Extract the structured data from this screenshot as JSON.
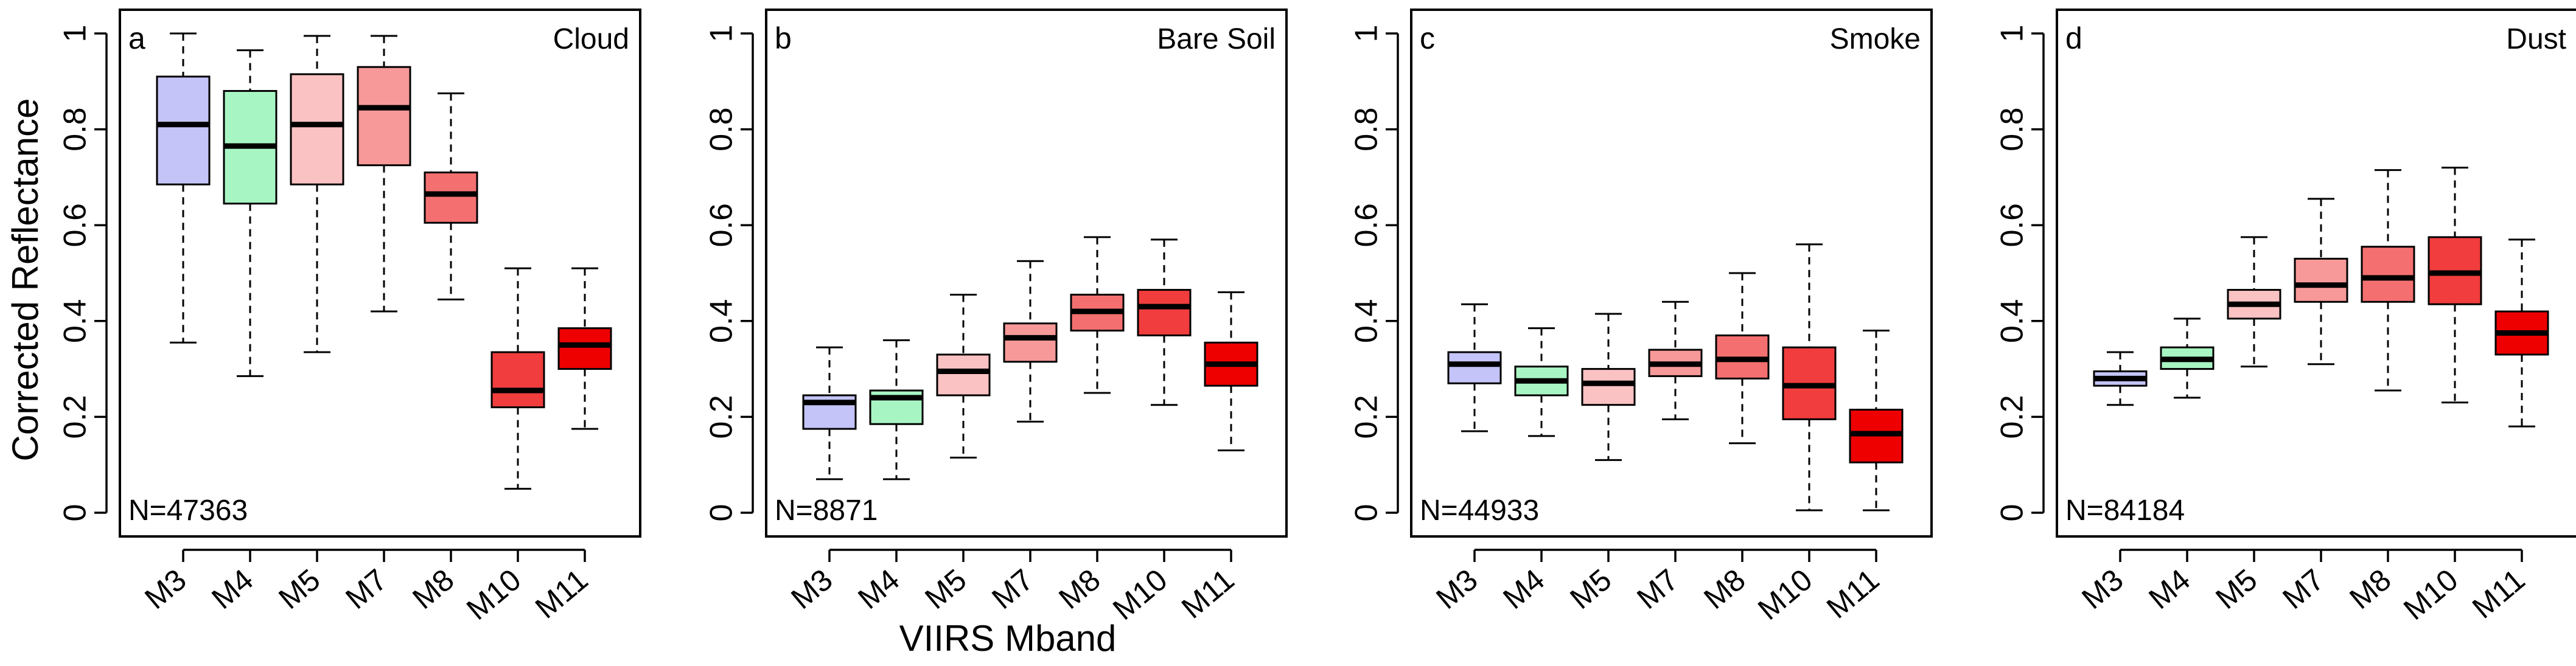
{
  "chart_data": {
    "type": "boxplot",
    "ylabel": "Corrected Reflectance",
    "xlabel": "VIIRS Mband",
    "ylim": [
      0,
      1
    ],
    "yticks": [
      "0",
      "0.2",
      "0.4",
      "0.6",
      "0.8",
      "1"
    ],
    "categories": [
      "M3",
      "M4",
      "M5",
      "M7",
      "M8",
      "M10",
      "M11"
    ],
    "colors": [
      "#c4c4f8",
      "#a8f5c4",
      "#fac2c2",
      "#f79999",
      "#f47070",
      "#f13d3d",
      "#ee0000"
    ],
    "panels": [
      {
        "letter": "a",
        "title": "Cloud",
        "n_label": "N=47363",
        "boxes": [
          {
            "min": 0.355,
            "q1": 0.685,
            "median": 0.81,
            "q3": 0.91,
            "max": 1.0
          },
          {
            "min": 0.285,
            "q1": 0.645,
            "median": 0.765,
            "q3": 0.88,
            "max": 0.965
          },
          {
            "min": 0.335,
            "q1": 0.685,
            "median": 0.81,
            "q3": 0.915,
            "max": 0.995
          },
          {
            "min": 0.42,
            "q1": 0.725,
            "median": 0.845,
            "q3": 0.93,
            "max": 0.995
          },
          {
            "min": 0.445,
            "q1": 0.605,
            "median": 0.665,
            "q3": 0.71,
            "max": 0.875
          },
          {
            "min": 0.05,
            "q1": 0.22,
            "median": 0.255,
            "q3": 0.335,
            "max": 0.51
          },
          {
            "min": 0.175,
            "q1": 0.3,
            "median": 0.35,
            "q3": 0.385,
            "max": 0.51
          }
        ]
      },
      {
        "letter": "b",
        "title": "Bare Soil",
        "n_label": "N=8871",
        "boxes": [
          {
            "min": 0.07,
            "q1": 0.175,
            "median": 0.23,
            "q3": 0.245,
            "max": 0.345
          },
          {
            "min": 0.07,
            "q1": 0.185,
            "median": 0.24,
            "q3": 0.255,
            "max": 0.36
          },
          {
            "min": 0.115,
            "q1": 0.245,
            "median": 0.295,
            "q3": 0.33,
            "max": 0.455
          },
          {
            "min": 0.19,
            "q1": 0.315,
            "median": 0.365,
            "q3": 0.395,
            "max": 0.525
          },
          {
            "min": 0.25,
            "q1": 0.38,
            "median": 0.42,
            "q3": 0.455,
            "max": 0.575
          },
          {
            "min": 0.225,
            "q1": 0.37,
            "median": 0.43,
            "q3": 0.465,
            "max": 0.57
          },
          {
            "min": 0.13,
            "q1": 0.265,
            "median": 0.31,
            "q3": 0.355,
            "max": 0.46
          }
        ]
      },
      {
        "letter": "c",
        "title": "Smoke",
        "n_label": "N=44933",
        "boxes": [
          {
            "min": 0.17,
            "q1": 0.27,
            "median": 0.31,
            "q3": 0.335,
            "max": 0.435
          },
          {
            "min": 0.16,
            "q1": 0.245,
            "median": 0.275,
            "q3": 0.305,
            "max": 0.385
          },
          {
            "min": 0.11,
            "q1": 0.225,
            "median": 0.27,
            "q3": 0.3,
            "max": 0.415
          },
          {
            "min": 0.195,
            "q1": 0.285,
            "median": 0.31,
            "q3": 0.34,
            "max": 0.44
          },
          {
            "min": 0.145,
            "q1": 0.28,
            "median": 0.32,
            "q3": 0.37,
            "max": 0.5
          },
          {
            "min": 0.005,
            "q1": 0.195,
            "median": 0.265,
            "q3": 0.345,
            "max": 0.56
          },
          {
            "min": 0.005,
            "q1": 0.105,
            "median": 0.165,
            "q3": 0.215,
            "max": 0.38
          }
        ]
      },
      {
        "letter": "d",
        "title": "Dust",
        "n_label": "N=84184",
        "boxes": [
          {
            "min": 0.225,
            "q1": 0.265,
            "median": 0.28,
            "q3": 0.295,
            "max": 0.335
          },
          {
            "min": 0.24,
            "q1": 0.3,
            "median": 0.32,
            "q3": 0.345,
            "max": 0.405
          },
          {
            "min": 0.305,
            "q1": 0.405,
            "median": 0.435,
            "q3": 0.465,
            "max": 0.575
          },
          {
            "min": 0.31,
            "q1": 0.44,
            "median": 0.475,
            "q3": 0.53,
            "max": 0.655
          },
          {
            "min": 0.255,
            "q1": 0.44,
            "median": 0.49,
            "q3": 0.555,
            "max": 0.715
          },
          {
            "min": 0.23,
            "q1": 0.435,
            "median": 0.5,
            "q3": 0.575,
            "max": 0.72
          },
          {
            "min": 0.18,
            "q1": 0.33,
            "median": 0.375,
            "q3": 0.42,
            "max": 0.57
          }
        ]
      }
    ]
  }
}
